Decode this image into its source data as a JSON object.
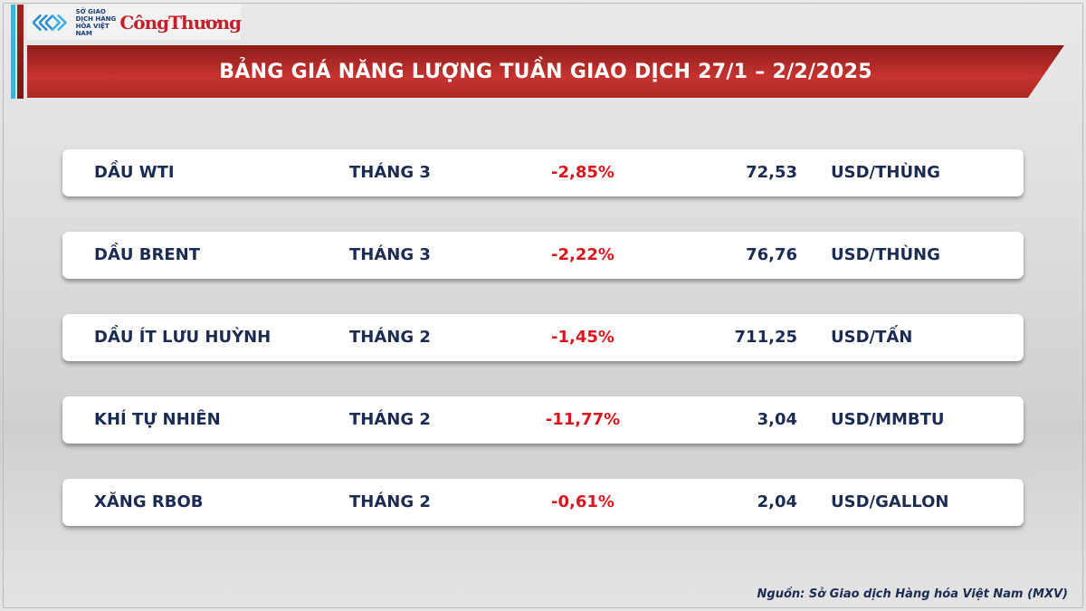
{
  "logo": {
    "org_text": "SỞ GIAO DỊCH HÀNG HÓA VIỆT NAM",
    "publication": "CôngThương"
  },
  "title": "BẢNG GIÁ NĂNG LƯỢNG TUẦN GIAO DỊCH 27/1 – 2/2/2025",
  "colors": {
    "banner": "#c63330",
    "accent_blue": "#3ab3df",
    "negative": "#d9161c",
    "text": "#1c2b52"
  },
  "rows": [
    {
      "name": "DẦU WTI",
      "month": "THÁNG 3",
      "change": "-2,85%",
      "price": "72,53",
      "unit": "USD/THÙNG"
    },
    {
      "name": "DẦU BRENT",
      "month": "THÁNG 3",
      "change": "-2,22%",
      "price": "76,76",
      "unit": "USD/THÙNG"
    },
    {
      "name": "DẦU ÍT LƯU HUỲNH",
      "month": "THÁNG 2",
      "change": "-1,45%",
      "price": "711,25",
      "unit": "USD/TẤN"
    },
    {
      "name": "KHÍ TỰ NHIÊN",
      "month": "THÁNG 2",
      "change": "-11,77%",
      "price": "3,04",
      "unit": "USD/MMBTU"
    },
    {
      "name": "XĂNG RBOB",
      "month": "THÁNG 2",
      "change": "-0,61%",
      "price": "2,04",
      "unit": "USD/GALLON"
    }
  ],
  "source": "Nguồn: Sở Giao dịch Hàng hóa Việt Nam (MXV)"
}
